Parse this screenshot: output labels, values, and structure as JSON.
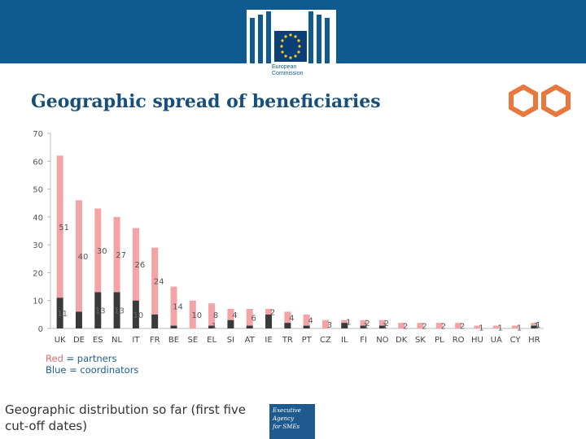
{
  "header": {
    "logo_text_line1": "European",
    "logo_text_line2": "Commission",
    "colors": {
      "banner": "#0f5b8f",
      "title": "#174f7c",
      "accent": "#e9783f"
    }
  },
  "slide": {
    "title": "Geographic spread of beneficiaries",
    "legend_red_word": "Red",
    "legend_red_rest": " = partners",
    "legend_blue_word": "Blue",
    "legend_blue_rest": " = coordinators",
    "note": "Geographic distribution so far (first five cut-off dates)",
    "agency_line1": "Executive",
    "agency_line2": "Agency",
    "agency_line3": "for SMEs"
  },
  "chart_data": {
    "type": "bar",
    "stacked": true,
    "title": "",
    "xlabel": "",
    "ylabel": "",
    "ylim": [
      0,
      70
    ],
    "yticks": [
      0,
      10,
      20,
      30,
      40,
      50,
      60,
      70
    ],
    "categories": [
      "UK",
      "DE",
      "ES",
      "NL",
      "IT",
      "FR",
      "BE",
      "SE",
      "EL",
      "SI",
      "AT",
      "IE",
      "TR",
      "PT",
      "CZ",
      "IL",
      "FI",
      "NO",
      "DK",
      "SK",
      "PL",
      "RO",
      "HU",
      "UA",
      "CY",
      "HR"
    ],
    "series": [
      {
        "name": "coordinators",
        "color": "#3a3a3a",
        "values": [
          11,
          6,
          13,
          13,
          10,
          5,
          1,
          0,
          1,
          3,
          1,
          5,
          2,
          1,
          0,
          2,
          1,
          1,
          0,
          0,
          0,
          0,
          0,
          0,
          0,
          1
        ],
        "labels": [
          "11",
          "",
          "13",
          "13",
          "10",
          "",
          "",
          "",
          "1",
          "",
          "",
          "",
          "",
          "",
          "",
          "",
          "1",
          "1",
          "",
          "",
          "",
          "",
          "",
          "",
          "",
          "1"
        ]
      },
      {
        "name": "partners",
        "color": "#f4a4a6",
        "values": [
          51,
          40,
          30,
          27,
          26,
          24,
          14,
          10,
          8,
          4,
          6,
          2,
          4,
          4,
          3,
          1,
          2,
          2,
          2,
          2,
          2,
          2,
          1,
          1,
          1,
          1
        ],
        "labels": [
          "51",
          "40",
          "30",
          "27",
          "26",
          "24",
          "14",
          "10",
          "8",
          "4",
          "6",
          "2",
          "4",
          "4",
          "3",
          "1",
          "2",
          "2",
          "2",
          "2",
          "2",
          "2",
          "1",
          "1",
          "1",
          "1"
        ]
      }
    ]
  }
}
